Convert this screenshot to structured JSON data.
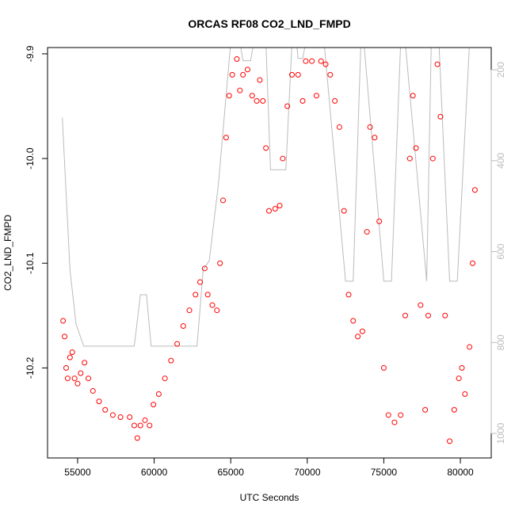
{
  "chart_data": {
    "type": "scatter",
    "title": "ORCAS RF08 CO2_LND_FMPD",
    "x_label": "UTC Seconds",
    "y_label": "CO2_LND_FMPD",
    "xlim": [
      53035,
      82016
    ],
    "ylim": [
      -10.286,
      -9.894
    ],
    "y2lim": [
      1054,
      151
    ],
    "xticks": [
      55000,
      60000,
      65000,
      70000,
      75000,
      80000
    ],
    "yticks": [
      -9.9,
      {
        "value": -10,
        "label": "-10.0"
      },
      -10.1,
      -10.2
    ],
    "y2ticks": [
      200,
      400,
      600,
      800,
      1000
    ],
    "y2_color": "#bbbbbb",
    "grid": false,
    "series": [
      {
        "color": "#ff0000",
        "marker": "circle",
        "x": [
          54050,
          54150,
          54250,
          54350,
          54500,
          54650,
          54800,
          55000,
          55200,
          55450,
          55700,
          56000,
          56400,
          56800,
          57300,
          57800,
          58400,
          58700,
          58900,
          59100,
          59400,
          59700,
          59950,
          60300,
          60700,
          61100,
          61500,
          61900,
          62300,
          62700,
          63000,
          63300,
          63500,
          63800,
          64100,
          64300,
          64500,
          64700,
          64900,
          65100,
          65400,
          65600,
          65800,
          66100,
          66400,
          66700,
          66900,
          67100,
          67300,
          67500,
          67900,
          68200,
          68400,
          68700,
          69000,
          69400,
          69700,
          69900,
          70300,
          70600,
          70900,
          71200,
          71500,
          71800,
          72100,
          72400,
          72700,
          73000,
          73300,
          73600,
          73900,
          74100,
          74400,
          74700,
          75000,
          75300,
          75700,
          76100,
          76400,
          76700,
          76900,
          77100,
          77400,
          77700,
          77900,
          78200,
          78500,
          78700,
          79000,
          79300,
          79600,
          79900,
          80100,
          80300,
          80600,
          80800,
          80950
        ],
        "values": [
          -10.155,
          -10.17,
          -10.2,
          -10.21,
          -10.19,
          -10.185,
          -10.21,
          -10.215,
          -10.205,
          -10.195,
          -10.21,
          -10.222,
          -10.232,
          -10.24,
          -10.245,
          -10.247,
          -10.247,
          -10.255,
          -10.267,
          -10.255,
          -10.25,
          -10.255,
          -10.235,
          -10.225,
          -10.21,
          -10.193,
          -10.177,
          -10.16,
          -10.145,
          -10.13,
          -10.118,
          -10.105,
          -10.13,
          -10.14,
          -10.145,
          -10.1,
          -10.04,
          -9.98,
          -9.94,
          -9.92,
          -9.905,
          -9.935,
          -9.92,
          -9.915,
          -9.94,
          -9.945,
          -9.925,
          -9.945,
          -9.99,
          -10.05,
          -10.048,
          -10.045,
          -10.0,
          -9.95,
          -9.92,
          -9.92,
          -9.945,
          -9.907,
          -9.907,
          -9.94,
          -9.907,
          -9.91,
          -9.92,
          -9.945,
          -9.97,
          -10.05,
          -10.13,
          -10.155,
          -10.17,
          -10.165,
          -10.07,
          -9.97,
          -9.98,
          -10.06,
          -10.2,
          -10.245,
          -10.252,
          -10.245,
          -10.15,
          -10.0,
          -9.94,
          -9.99,
          -10.14,
          -10.24,
          -10.15,
          -10.0,
          -9.91,
          -9.96,
          -10.15,
          -10.27,
          -10.24,
          -10.21,
          -10.2,
          -10.225,
          -10.18,
          -10.1,
          -10.03
        ]
      },
      {
        "color": "#bbbbbb",
        "marker": "line",
        "axis": "y2",
        "x": [
          54000,
          54500,
          54900,
          55400,
          58700,
          59100,
          59500,
          59800,
          62800,
          63200,
          63600,
          64200,
          65000,
          65600,
          65800,
          66300,
          66500,
          67300,
          67600,
          68600,
          69000,
          69300,
          69400,
          69700,
          69900,
          71100,
          72500,
          73000,
          73500,
          73700,
          75000,
          75500,
          76100,
          76400,
          77800,
          78100,
          78600,
          79300,
          79800,
          80600
        ],
        "values": [
          305,
          640,
          760,
          808,
          808,
          695,
          695,
          808,
          808,
          640,
          620,
          450,
          140,
          140,
          180,
          180,
          140,
          140,
          420,
          420,
          140,
          140,
          175,
          175,
          140,
          140,
          665,
          665,
          140,
          140,
          665,
          665,
          140,
          140,
          665,
          140,
          140,
          665,
          665,
          140
        ]
      }
    ]
  }
}
